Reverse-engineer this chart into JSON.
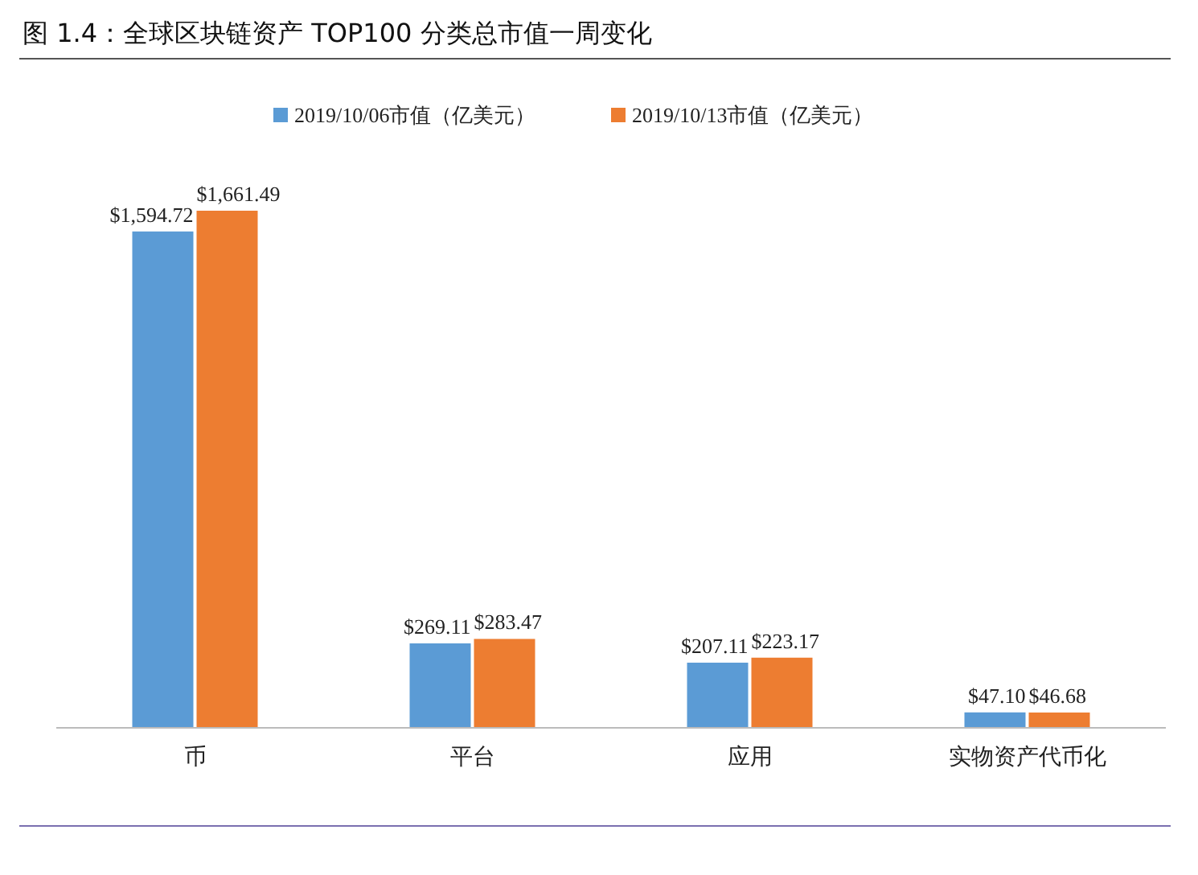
{
  "chart_data": {
    "type": "bar",
    "title": "图 1.4：全球区块链资产 TOP100 分类总市值一周变化",
    "categories": [
      "币",
      "平台",
      "应用",
      "实物资产代币化"
    ],
    "legend": "top",
    "series": [
      {
        "name": "2019/10/06市值（亿美元）",
        "color": "#5b9bd5",
        "values": [
          1594.72,
          269.11,
          207.11,
          47.1
        ],
        "value_labels": [
          "$1,594.72",
          "$269.11",
          "$207.11",
          "$47.10"
        ]
      },
      {
        "name": "2019/10/13市值（亿美元）",
        "color": "#ed7d31",
        "values": [
          1661.49,
          283.47,
          223.17,
          46.68
        ],
        "value_labels": [
          "$1,661.49",
          "$283.47",
          "$223.17",
          "$46.68"
        ]
      }
    ]
  }
}
